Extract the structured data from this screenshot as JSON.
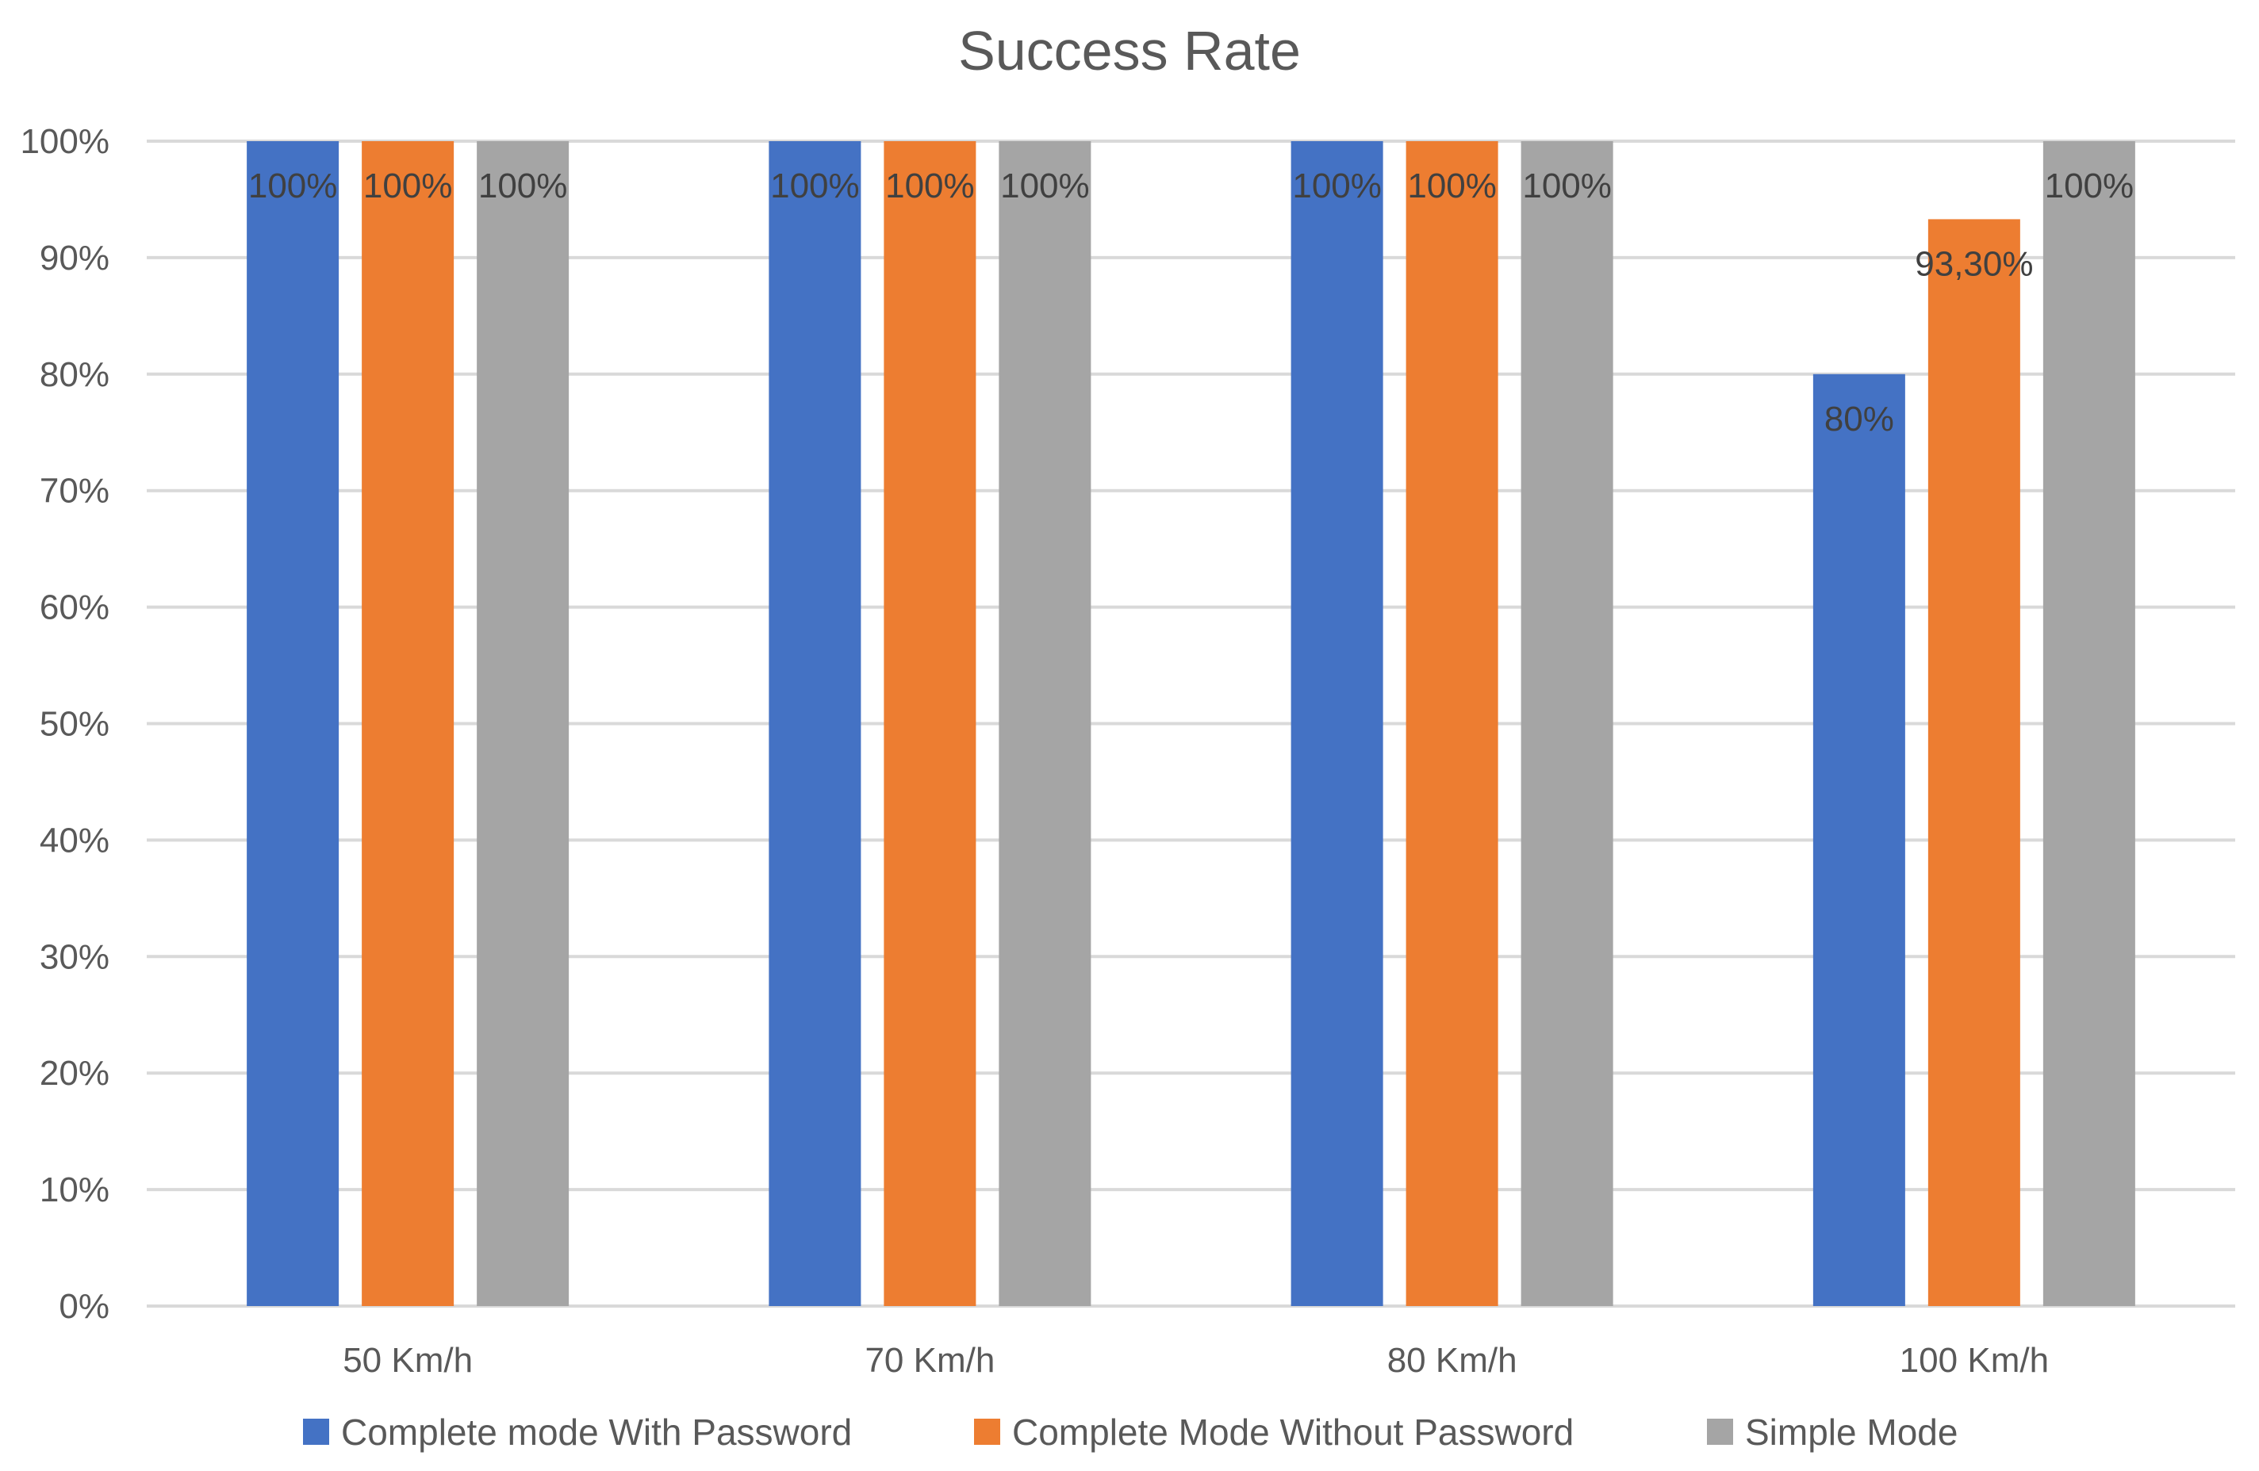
{
  "chart_data": {
    "type": "bar",
    "title": "Success Rate",
    "xlabel": "",
    "ylabel": "",
    "categories": [
      "50 Km/h",
      "70 Km/h",
      "80 Km/h",
      "100 Km/h"
    ],
    "yticks": [
      "0%",
      "10%",
      "20%",
      "30%",
      "40%",
      "50%",
      "60%",
      "70%",
      "80%",
      "90%",
      "100%"
    ],
    "ylim": [
      0,
      100
    ],
    "grid": true,
    "legend": "bottom",
    "series": [
      {
        "name": "Complete mode With Password",
        "color": "#4472C4",
        "values": [
          100,
          100,
          100,
          80
        ],
        "labels": [
          "100%",
          "100%",
          "100%",
          "80%"
        ]
      },
      {
        "name": "Complete Mode Without Password",
        "color": "#ED7D31",
        "values": [
          100,
          100,
          100,
          93.3
        ],
        "labels": [
          "100%",
          "100%",
          "100%",
          "93,30%"
        ]
      },
      {
        "name": "Simple Mode",
        "color": "#A5A5A5",
        "values": [
          100,
          100,
          100,
          100
        ],
        "labels": [
          "100%",
          "100%",
          "100%",
          "100%"
        ]
      }
    ]
  }
}
